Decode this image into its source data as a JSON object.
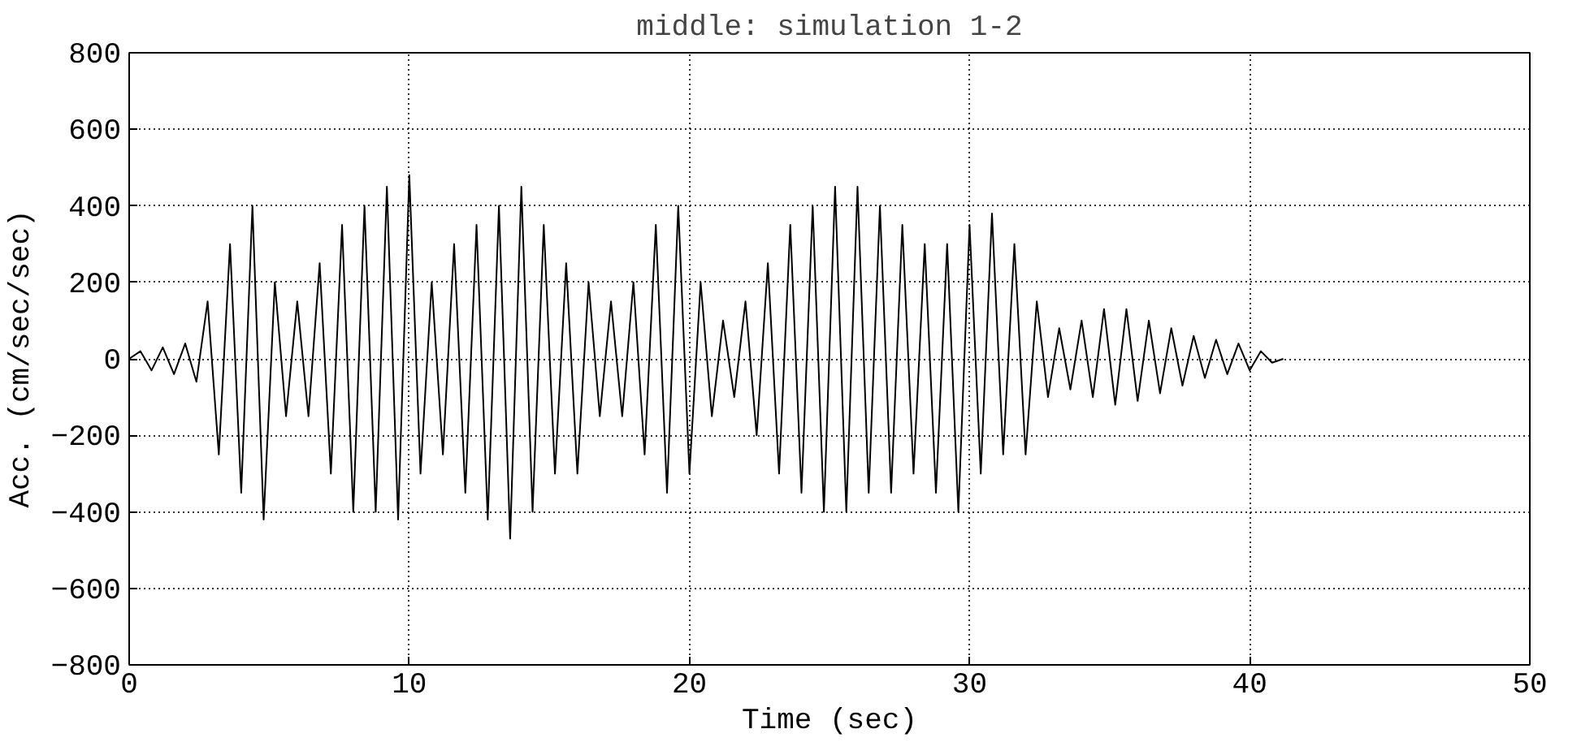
{
  "chart_data": {
    "type": "line",
    "title": "middle: simulation 1-2",
    "xlabel": "Time (sec)",
    "ylabel": "Acc. (cm/sec/sec)",
    "x": [
      0.0,
      0.4,
      0.8,
      1.2,
      1.6,
      2.0,
      2.4,
      2.8,
      3.2,
      3.6,
      4.0,
      4.4,
      4.8,
      5.2,
      5.6,
      6.0,
      6.4,
      6.8,
      7.2,
      7.6,
      8.0,
      8.4,
      8.8,
      9.2,
      9.6,
      10.0,
      10.4,
      10.8,
      11.2,
      11.6,
      12.0,
      12.4,
      12.8,
      13.2,
      13.6,
      14.0,
      14.4,
      14.8,
      15.2,
      15.6,
      16.0,
      16.4,
      16.8,
      17.2,
      17.6,
      18.0,
      18.4,
      18.8,
      19.2,
      19.6,
      20.0,
      20.4,
      20.8,
      21.2,
      21.6,
      22.0,
      22.4,
      22.8,
      23.2,
      23.6,
      24.0,
      24.4,
      24.8,
      25.2,
      25.6,
      26.0,
      26.4,
      26.8,
      27.2,
      27.6,
      28.0,
      28.4,
      28.8,
      29.2,
      29.6,
      30.0,
      30.4,
      30.8,
      31.2,
      31.6,
      32.0,
      32.4,
      32.8,
      33.2,
      33.6,
      34.0,
      34.4,
      34.8,
      35.2,
      35.6,
      36.0,
      36.4,
      36.8,
      37.2,
      37.6,
      38.0,
      38.4,
      38.8,
      39.2,
      39.6,
      40.0,
      40.4,
      40.8,
      41.2
    ],
    "series": [
      {
        "color": "#000000",
        "values": [
          0,
          20,
          -30,
          30,
          -40,
          40,
          -60,
          150,
          -250,
          300,
          -350,
          400,
          -420,
          200,
          -150,
          150,
          -150,
          250,
          -300,
          350,
          -400,
          400,
          -400,
          450,
          -420,
          480,
          -300,
          200,
          -250,
          300,
          -350,
          350,
          -420,
          400,
          -470,
          450,
          -400,
          350,
          -300,
          250,
          -300,
          200,
          -150,
          150,
          -150,
          200,
          -250,
          350,
          -350,
          400,
          -300,
          200,
          -150,
          100,
          -100,
          150,
          -200,
          250,
          -300,
          350,
          -350,
          400,
          -400,
          450,
          -400,
          450,
          -350,
          400,
          -350,
          350,
          -300,
          300,
          -350,
          300,
          -400,
          350,
          -300,
          380,
          -250,
          300,
          -250,
          150,
          -100,
          80,
          -80,
          100,
          -100,
          130,
          -120,
          130,
          -110,
          100,
          -90,
          80,
          -70,
          60,
          -50,
          50,
          -40,
          40,
          -30,
          20,
          -10,
          0
        ]
      }
    ],
    "xlim": [
      0,
      50
    ],
    "xticks": [
      0,
      10,
      20,
      30,
      40,
      50
    ],
    "ylim": [
      -800,
      800
    ],
    "yticks": [
      -800,
      -600,
      -400,
      -200,
      0,
      200,
      400,
      600,
      800
    ],
    "grid": true,
    "line_style": "solid",
    "marker": "none"
  }
}
